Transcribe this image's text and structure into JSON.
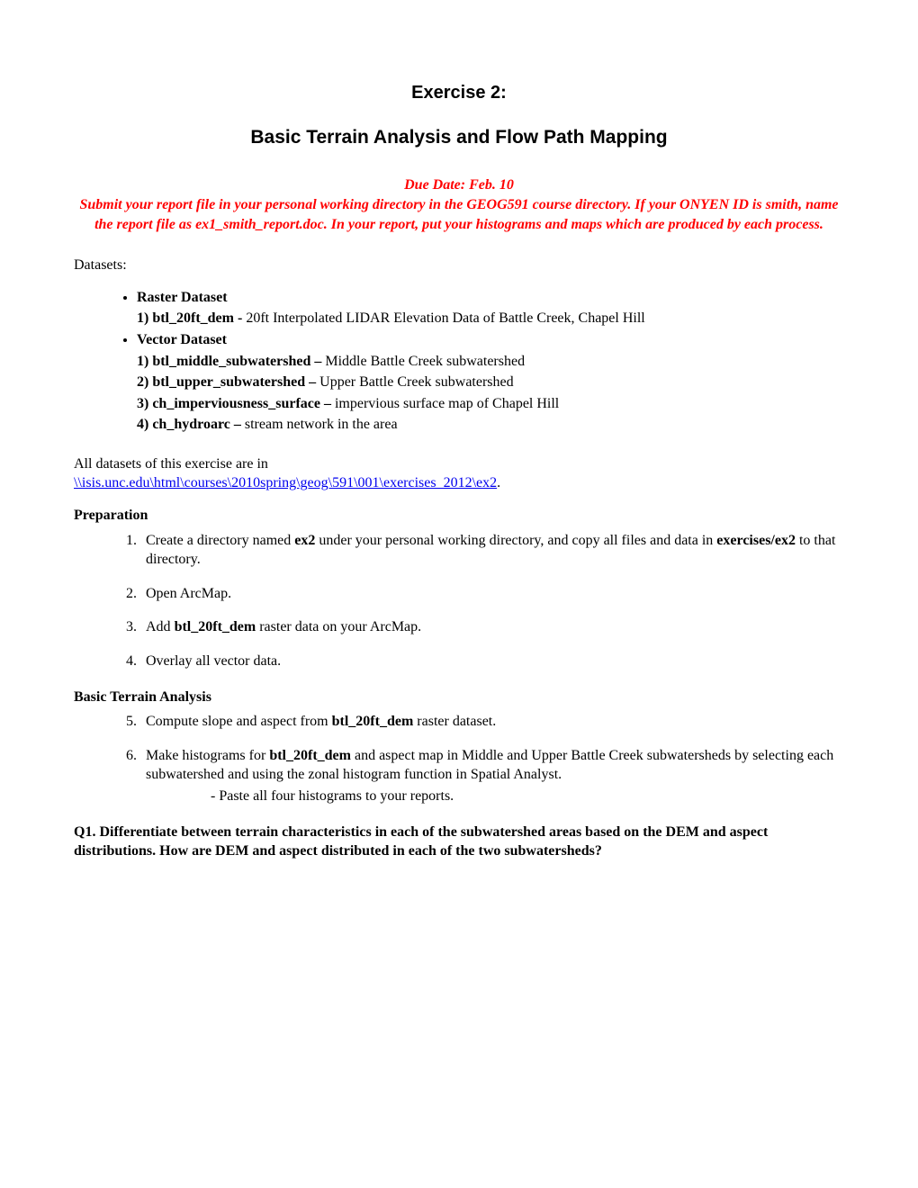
{
  "title1": "Exercise 2:",
  "title2": "Basic Terrain Analysis and Flow Path Mapping",
  "due_date": "Due Date: Feb. 10",
  "instructions": "Submit your report file in your personal working directory in the GEOG591 course directory. If your ONYEN ID is smith, name the report file as ex1_smith_report.doc. In your report, put your histograms and maps which are produced by each process.",
  "datasets_label": "Datasets:",
  "raster_header": "Raster Dataset",
  "raster_1_name": "1) btl_20ft_dem - ",
  "raster_1_desc": "20ft Interpolated LIDAR Elevation Data of Battle Creek, Chapel Hill",
  "vector_header": "Vector Dataset",
  "vector_1_name": "1) btl_middle_subwatershed – ",
  "vector_1_desc": "Middle Battle Creek subwatershed",
  "vector_2_name": "2) btl_upper_subwatershed – ",
  "vector_2_desc": "Upper Battle Creek subwatershed",
  "vector_3_name": "3) ch_imperviousness_surface – ",
  "vector_3_desc": "impervious surface map of Chapel Hill",
  "vector_4_name": "4) ch_hydroarc – ",
  "vector_4_desc": "stream network in the area",
  "all_datasets_text": "All datasets of this exercise are in",
  "datasets_path": "\\\\isis.unc.edu\\html\\courses\\2010spring\\geog\\591\\001\\exercises_2012\\ex2",
  "preparation_header": "Preparation",
  "step1_a": "Create a directory named ",
  "step1_b": "ex2",
  "step1_c": " under your personal working directory, and copy all files and data in ",
  "step1_d": "exercises/ex2",
  "step1_e": " to that directory.",
  "step2": "Open ArcMap.",
  "step3_a": "Add ",
  "step3_b": "btl_20ft_dem",
  "step3_c": " raster data on your ArcMap.",
  "step4": "Overlay all vector data.",
  "basic_terrain_header": "Basic Terrain Analysis",
  "step5_a": "Compute slope and aspect from ",
  "step5_b": "btl_20ft_dem",
  "step5_c": " raster dataset.",
  "step6_a": "Make histograms for ",
  "step6_b": "btl_20ft_dem",
  "step6_c": " and aspect map in Middle and Upper Battle Creek subwatersheds by selecting each subwatershed and using the zonal histogram function in Spatial Analyst.",
  "step6_sub": "Paste all four histograms to your reports.",
  "q1": "Q1.  Differentiate between terrain characteristics in each of the subwatershed areas based on the DEM and aspect distributions. How are DEM and aspect distributed in each of the two subwatersheds?"
}
